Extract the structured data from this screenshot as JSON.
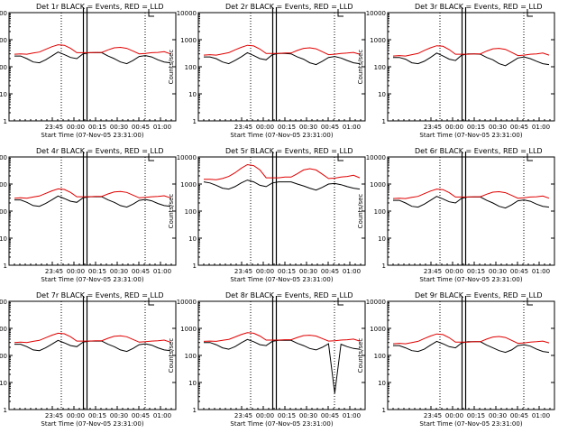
{
  "colors": {
    "events": "#000000",
    "lld": "#e00000",
    "axes": "#000000",
    "background": "#ffffff"
  },
  "ylabel": "Counts/sec",
  "xlabel": "Start Time (07-Nov-05 23:31:00)",
  "x_ticks": [
    "23:45",
    "00:00",
    "00:15",
    "00:30",
    "00:45",
    "01:00"
  ],
  "y_ticks": [
    "1",
    "10",
    "100",
    "1000",
    "10000"
  ],
  "chart_data": [
    {
      "type": "line",
      "title": "Det 1r BLACK = Events, RED = LLD",
      "x_start": "23:31",
      "ylim": [
        1,
        10000
      ],
      "y_scale": "log",
      "series": [
        {
          "name": "Events",
          "color": "#000000",
          "values": [
            250,
            250,
            200,
            150,
            140,
            180,
            250,
            350,
            280,
            220,
            200,
            300,
            330,
            330,
            330,
            250,
            200,
            150,
            130,
            170,
            240,
            260,
            230,
            180,
            150,
            140
          ]
        },
        {
          "name": "LLD",
          "color": "#e00000",
          "values": [
            290,
            300,
            290,
            320,
            350,
            440,
            550,
            650,
            620,
            480,
            330,
            330,
            330,
            340,
            340,
            420,
            500,
            520,
            480,
            380,
            300,
            310,
            330,
            340,
            360,
            300
          ]
        }
      ]
    },
    {
      "type": "line",
      "title": "Det 2r BLACK = Events, RED = LLD",
      "x_start": "23:31",
      "ylim": [
        1,
        10000
      ],
      "y_scale": "log",
      "series": [
        {
          "name": "Events",
          "color": "#000000",
          "values": [
            230,
            230,
            200,
            150,
            130,
            170,
            230,
            330,
            260,
            200,
            180,
            280,
            310,
            310,
            300,
            230,
            190,
            140,
            120,
            160,
            220,
            240,
            210,
            170,
            140,
            130
          ]
        },
        {
          "name": "LLD",
          "color": "#e00000",
          "values": [
            270,
            280,
            270,
            300,
            330,
            420,
            520,
            620,
            590,
            450,
            310,
            310,
            310,
            320,
            320,
            400,
            480,
            500,
            460,
            360,
            280,
            290,
            310,
            320,
            340,
            290
          ]
        }
      ]
    },
    {
      "type": "line",
      "title": "Det 3r BLACK = Events, RED = LLD",
      "x_start": "23:31",
      "ylim": [
        1,
        10000
      ],
      "y_scale": "log",
      "series": [
        {
          "name": "Events",
          "color": "#000000",
          "values": [
            220,
            220,
            190,
            140,
            130,
            160,
            220,
            320,
            250,
            190,
            170,
            270,
            300,
            300,
            290,
            220,
            180,
            130,
            110,
            150,
            210,
            230,
            200,
            160,
            130,
            120
          ]
        },
        {
          "name": "LLD",
          "color": "#e00000",
          "values": [
            250,
            260,
            250,
            280,
            310,
            400,
            500,
            600,
            570,
            430,
            290,
            290,
            290,
            300,
            300,
            380,
            460,
            480,
            440,
            340,
            260,
            270,
            290,
            300,
            320,
            270
          ]
        }
      ]
    },
    {
      "type": "line",
      "title": "Det 4r BLACK = Events, RED = LLD",
      "x_start": "23:31",
      "ylim": [
        1,
        10000
      ],
      "y_scale": "log",
      "series": [
        {
          "name": "Events",
          "color": "#000000",
          "values": [
            260,
            260,
            210,
            160,
            150,
            190,
            260,
            360,
            290,
            230,
            210,
            310,
            340,
            340,
            340,
            260,
            210,
            160,
            140,
            180,
            250,
            270,
            240,
            190,
            160,
            150
          ]
        },
        {
          "name": "LLD",
          "color": "#e00000",
          "values": [
            300,
            310,
            300,
            330,
            360,
            450,
            560,
            660,
            630,
            490,
            340,
            340,
            340,
            350,
            350,
            430,
            510,
            530,
            490,
            390,
            310,
            320,
            340,
            350,
            370,
            310
          ]
        }
      ]
    },
    {
      "type": "line",
      "title": "Det 5r BLACK = Events, RED = LLD",
      "x_start": "23:31",
      "ylim": [
        1,
        10000
      ],
      "y_scale": "log",
      "series": [
        {
          "name": "Events",
          "color": "#000000",
          "values": [
            1200,
            1100,
            900,
            700,
            650,
            800,
            1100,
            1400,
            1200,
            900,
            800,
            1100,
            1200,
            1200,
            1200,
            1000,
            850,
            700,
            600,
            750,
            1000,
            1050,
            950,
            800,
            700,
            650
          ]
        },
        {
          "name": "LLD",
          "color": "#e00000",
          "values": [
            1500,
            1500,
            1450,
            1600,
            1900,
            2600,
            3800,
            5200,
            4800,
            3300,
            1700,
            1700,
            1700,
            1800,
            1800,
            2400,
            3300,
            3700,
            3300,
            2300,
            1600,
            1650,
            1800,
            1900,
            2100,
            1700
          ]
        }
      ]
    },
    {
      "type": "line",
      "title": "Det 6r BLACK = Events, RED = LLD",
      "x_start": "23:31",
      "ylim": [
        1,
        10000
      ],
      "y_scale": "log",
      "series": [
        {
          "name": "Events",
          "color": "#000000",
          "values": [
            250,
            250,
            200,
            150,
            140,
            180,
            250,
            350,
            280,
            220,
            200,
            300,
            330,
            330,
            330,
            250,
            200,
            150,
            130,
            170,
            240,
            260,
            230,
            180,
            150,
            140
          ]
        },
        {
          "name": "LLD",
          "color": "#e00000",
          "values": [
            290,
            300,
            290,
            320,
            350,
            440,
            550,
            650,
            620,
            480,
            330,
            330,
            330,
            340,
            340,
            420,
            500,
            520,
            480,
            380,
            300,
            310,
            330,
            340,
            360,
            300
          ]
        }
      ]
    },
    {
      "type": "line",
      "title": "Det 7r BLACK = Events, RED = LLD",
      "x_start": "23:31",
      "ylim": [
        1,
        10000
      ],
      "y_scale": "log",
      "series": [
        {
          "name": "Events",
          "color": "#000000",
          "values": [
            260,
            260,
            210,
            160,
            150,
            190,
            260,
            360,
            290,
            230,
            210,
            310,
            340,
            340,
            340,
            260,
            210,
            160,
            140,
            180,
            250,
            270,
            240,
            190,
            160,
            150
          ]
        },
        {
          "name": "LLD",
          "color": "#e00000",
          "values": [
            300,
            310,
            300,
            330,
            360,
            450,
            560,
            660,
            630,
            490,
            340,
            340,
            340,
            350,
            350,
            430,
            510,
            530,
            490,
            390,
            310,
            320,
            340,
            350,
            370,
            310
          ]
        }
      ]
    },
    {
      "type": "line",
      "title": "Det 8r BLACK = Events, RED = LLD",
      "x_start": "23:31",
      "ylim": [
        1,
        10000
      ],
      "y_scale": "log",
      "series": [
        {
          "name": "Events",
          "color": "#000000",
          "values": [
            300,
            300,
            250,
            190,
            170,
            210,
            290,
            390,
            320,
            250,
            230,
            330,
            360,
            360,
            360,
            280,
            230,
            180,
            160,
            200,
            270,
            4,
            260,
            210,
            180,
            170
          ]
        },
        {
          "name": "LLD",
          "color": "#e00000",
          "values": [
            330,
            340,
            330,
            360,
            390,
            480,
            590,
            690,
            660,
            520,
            370,
            370,
            370,
            380,
            380,
            460,
            540,
            560,
            520,
            420,
            340,
            350,
            370,
            380,
            400,
            340
          ]
        }
      ]
    },
    {
      "type": "line",
      "title": "Det 9r BLACK = Events, RED = LLD",
      "x_start": "23:31",
      "ylim": [
        1,
        10000
      ],
      "y_scale": "log",
      "series": [
        {
          "name": "Events",
          "color": "#000000",
          "values": [
            230,
            230,
            190,
            150,
            140,
            170,
            240,
            330,
            270,
            210,
            190,
            290,
            320,
            320,
            320,
            240,
            190,
            150,
            130,
            160,
            230,
            250,
            220,
            170,
            140,
            130
          ]
        },
        {
          "name": "LLD",
          "color": "#e00000",
          "values": [
            270,
            280,
            270,
            300,
            330,
            420,
            520,
            620,
            590,
            450,
            310,
            310,
            310,
            320,
            320,
            400,
            480,
            500,
            460,
            360,
            280,
            290,
            310,
            320,
            340,
            290
          ]
        }
      ]
    }
  ]
}
